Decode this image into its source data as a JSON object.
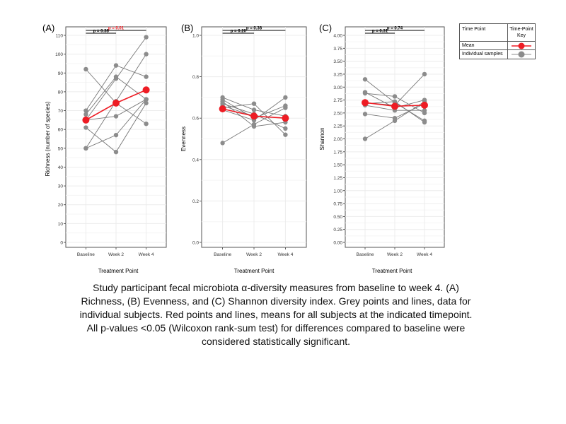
{
  "chart_data": [
    {
      "type": "line",
      "panel_label": "(A)",
      "xlabel": "Treatment Point",
      "ylabel": "Richness (number of species)",
      "categories": [
        "Baseline",
        "Week 2",
        "Week 4"
      ],
      "ylim": [
        0,
        110
      ],
      "yticks": [
        "0",
        "10",
        "20",
        "30",
        "40",
        "50",
        "60",
        "70",
        "80",
        "90",
        "100",
        "110"
      ],
      "individuals": [
        [
          92,
          74,
          63
        ],
        [
          70,
          94,
          88
        ],
        [
          68,
          88,
          76
        ],
        [
          65,
          87,
          109
        ],
        [
          61,
          48,
          74
        ],
        [
          50,
          57,
          76
        ],
        [
          50,
          75,
          100
        ],
        [
          65,
          67,
          76
        ]
      ],
      "mean": [
        65,
        74,
        81
      ],
      "pvalues": [
        {
          "label": "p = 0.01",
          "from": 0,
          "to": 2,
          "color": "red"
        },
        {
          "label": "p = 0.38",
          "from": 0,
          "to": 1,
          "color": "black"
        }
      ]
    },
    {
      "type": "line",
      "panel_label": "(B)",
      "xlabel": "Treatment Point",
      "ylabel": "Evenness",
      "categories": [
        "Baseline",
        "Week 2",
        "Week 4"
      ],
      "ylim": [
        0,
        1.0
      ],
      "yticks": [
        "0.0",
        "0.2",
        "0.4",
        "0.6",
        "0.8",
        "1.0"
      ],
      "individuals": [
        [
          0.7,
          0.64,
          0.61
        ],
        [
          0.69,
          0.6,
          0.66
        ],
        [
          0.68,
          0.56,
          0.58
        ],
        [
          0.67,
          0.62,
          0.55
        ],
        [
          0.65,
          0.67,
          0.52
        ],
        [
          0.64,
          0.59,
          0.7
        ],
        [
          0.48,
          0.57,
          0.65
        ],
        [
          0.66,
          0.61,
          0.6
        ]
      ],
      "mean": [
        0.645,
        0.61,
        0.6
      ],
      "pvalues": [
        {
          "label": "p = 0.38",
          "from": 0,
          "to": 2,
          "color": "black"
        },
        {
          "label": "p = 0.20",
          "from": 0,
          "to": 1,
          "color": "black"
        }
      ]
    },
    {
      "type": "line",
      "panel_label": "(C)",
      "xlabel": "Treatment Point",
      "ylabel": "Shannon",
      "categories": [
        "Baseline",
        "Week 2",
        "Week 4"
      ],
      "ylim": [
        0,
        4.0
      ],
      "yticks": [
        "0.00",
        "0.25",
        "0.50",
        "0.75",
        "1.00",
        "1.25",
        "1.50",
        "1.75",
        "2.00",
        "2.25",
        "2.50",
        "2.75",
        "3.00",
        "3.25",
        "3.50",
        "3.75",
        "4.00"
      ],
      "individuals": [
        [
          3.15,
          2.7,
          2.35
        ],
        [
          2.9,
          2.6,
          2.75
        ],
        [
          2.88,
          2.82,
          2.5
        ],
        [
          2.7,
          2.65,
          3.25
        ],
        [
          2.65,
          2.55,
          2.55
        ],
        [
          2.48,
          2.4,
          2.68
        ],
        [
          2.0,
          2.35,
          2.72
        ],
        [
          2.68,
          2.72,
          2.32
        ]
      ],
      "mean": [
        2.7,
        2.63,
        2.65
      ],
      "pvalues": [
        {
          "label": "p = 0.74",
          "from": 0,
          "to": 2,
          "color": "black"
        },
        {
          "label": "p = 0.31",
          "from": 0,
          "to": 1,
          "color": "black"
        }
      ]
    }
  ],
  "legend": {
    "header_left": "Time Point",
    "header_right": "Time-Point Key",
    "rows": [
      "Mean",
      "Individual samples"
    ]
  },
  "colors": {
    "mean": "#ee1c24",
    "individual": "#8c8c8c",
    "grid": "#ececec",
    "frame": "#555555"
  },
  "caption": "Study participant fecal microbiota α-diversity measures from baseline to week 4. (A) Richness, (B) Evenness, and (C) Shannon diversity index. Grey points and lines, data for individual subjects. Red points and lines, means for all subjects at the indicated timepoint. All p-values <0.05 (Wilcoxon rank-sum test) for differences compared to baseline were considered statistically significant."
}
